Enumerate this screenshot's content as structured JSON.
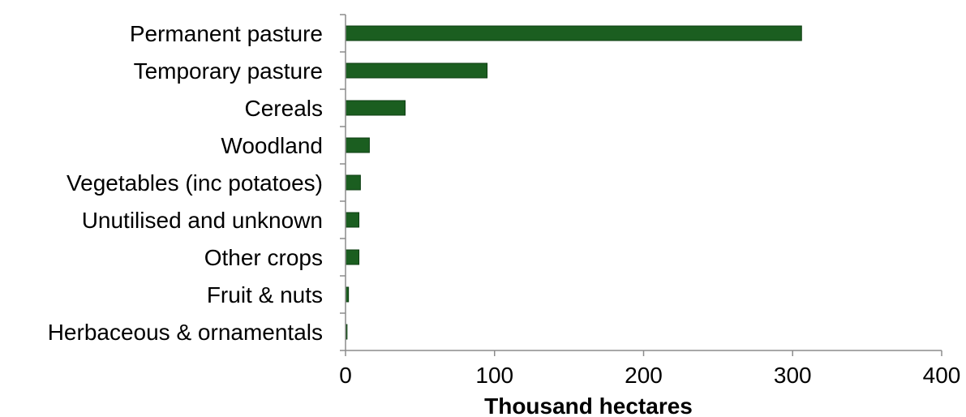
{
  "chart_data": {
    "type": "bar",
    "orientation": "horizontal",
    "categories": [
      "Permanent pasture",
      "Temporary pasture",
      "Cereals",
      "Woodland",
      "Vegetables (inc potatoes)",
      "Unutilised and unknown",
      "Other crops",
      "Fruit & nuts",
      "Herbaceous & ornamentals"
    ],
    "values": [
      306,
      95,
      40,
      16,
      10,
      9,
      9,
      2,
      1
    ],
    "title": "",
    "xlabel": "Thousand hectares",
    "ylabel": "",
    "xlim": [
      0,
      400
    ],
    "xticks": [
      "0",
      "100",
      "200",
      "300",
      "400"
    ],
    "grid": false,
    "legend": "none",
    "bar_color": "#1b5e20"
  }
}
